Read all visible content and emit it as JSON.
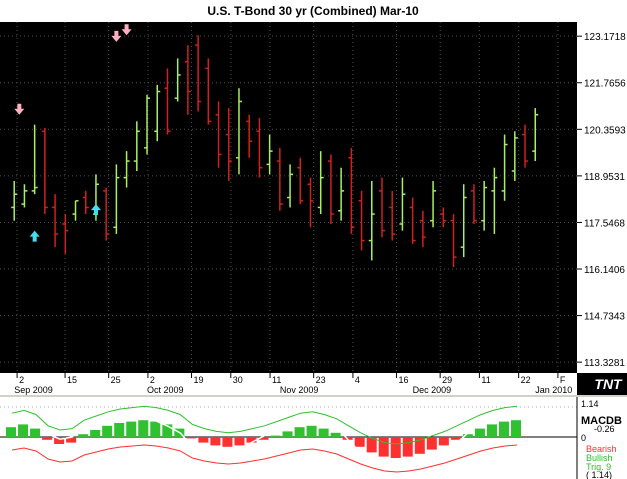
{
  "chart_data": [
    {
      "type": "bar",
      "title": "U.S. T-Bond 30 yr (Combined) Mar-10",
      "y_ticks": [
        "123.1718",
        "121.7656",
        "120.3593",
        "118.9531",
        "117.5468",
        "116.1406",
        "114.7343",
        "113.3281"
      ],
      "ylim": [
        113.0,
        123.6
      ],
      "x_day_ticks": [
        "2",
        "15",
        "25",
        "2",
        "19",
        "30",
        "11",
        "23",
        "4",
        "16",
        "29",
        "11",
        "22",
        "F"
      ],
      "x_month_labels": [
        "Sep 2009",
        "Oct 2009",
        "Nov 2009",
        "Dec 2009",
        "Jan 2010"
      ],
      "grid": true,
      "bars": {
        "x": [
          2,
          4,
          6,
          8,
          10,
          12,
          14,
          16,
          18,
          20,
          22,
          24,
          26,
          28,
          30,
          32,
          34,
          36,
          38,
          40,
          42,
          44,
          46,
          48,
          50,
          52,
          54,
          56,
          58,
          60,
          62,
          64,
          66,
          68,
          70,
          72,
          74,
          76,
          78,
          80,
          82,
          84,
          86,
          88,
          90,
          92,
          94,
          96,
          98,
          100,
          102,
          104
        ],
        "high": [
          118.8,
          118.7,
          120.5,
          120.4,
          118.4,
          117.8,
          118.2,
          118.5,
          119.0,
          118.6,
          119.3,
          119.7,
          120.6,
          121.4,
          121.7,
          122.2,
          122.5,
          122.9,
          123.2,
          122.5,
          121.2,
          121.0,
          121.6,
          120.8,
          120.7,
          120.2,
          119.8,
          119.3,
          119.5,
          118.9,
          119.7,
          119.6,
          119.2,
          119.8,
          118.5,
          118.8,
          118.9,
          118.5,
          118.9,
          118.3,
          117.9,
          118.8,
          118.0,
          117.8,
          118.7,
          118.7,
          118.8,
          119.2,
          120.2,
          120.3,
          120.5,
          121.0
        ],
        "low": [
          117.6,
          118.0,
          118.4,
          117.8,
          116.8,
          116.6,
          117.6,
          117.8,
          117.6,
          117.0,
          117.2,
          118.6,
          119.1,
          119.6,
          120.0,
          120.2,
          121.2,
          120.8,
          120.9,
          120.5,
          119.2,
          118.8,
          119.0,
          119.5,
          118.9,
          119.0,
          117.9,
          118.0,
          118.1,
          117.4,
          117.8,
          117.5,
          117.6,
          117.2,
          116.7,
          116.4,
          117.1,
          117.0,
          117.3,
          116.9,
          116.8,
          117.4,
          117.4,
          116.2,
          116.5,
          117.5,
          117.3,
          117.2,
          118.2,
          118.8,
          119.2,
          119.4
        ],
        "close": [
          118.4,
          118.5,
          118.6,
          118.0,
          117.2,
          117.3,
          118.2,
          118.0,
          118.7,
          117.2,
          118.9,
          119.4,
          120.3,
          121.3,
          121.5,
          120.3,
          122.0,
          121.5,
          121.2,
          120.6,
          119.6,
          119.4,
          121.2,
          120.0,
          119.2,
          119.7,
          118.1,
          119.0,
          118.2,
          118.2,
          118.9,
          117.8,
          118.5,
          117.4,
          117.0,
          117.8,
          117.3,
          117.2,
          118.4,
          117.0,
          117.1,
          118.5,
          117.6,
          116.5,
          118.3,
          117.6,
          118.6,
          118.9,
          119.9,
          120.1,
          119.4,
          120.8
        ],
        "open": [
          118.0,
          118.1,
          118.5,
          120.3,
          118.0,
          117.5,
          117.8,
          118.3,
          117.8,
          118.5,
          117.4,
          118.9,
          119.4,
          119.8,
          120.3,
          121.6,
          121.3,
          122.4,
          122.9,
          122.2,
          120.8,
          120.2,
          119.5,
          120.6,
          120.3,
          119.3,
          119.4,
          118.3,
          119.2,
          118.7,
          118.0,
          119.4,
          117.9,
          119.5,
          118.2,
          117.0,
          118.5,
          118.0,
          117.5,
          118.0,
          117.6,
          117.6,
          117.8,
          117.6,
          116.8,
          118.5,
          117.6,
          118.5,
          118.5,
          119.1,
          120.2,
          119.7
        ]
      },
      "down_arrows": [
        {
          "x": 3,
          "y": 120.8
        },
        {
          "x": 22,
          "y": 123.0
        },
        {
          "x": 24,
          "y": 123.2
        }
      ],
      "up_arrows": [
        {
          "x": 6,
          "y": 117.3
        },
        {
          "x": 18,
          "y": 118.1
        }
      ]
    },
    {
      "type": "bar",
      "title": "MACDB",
      "y_ticks": [
        "1.14",
        "0"
      ],
      "series_labels": [
        "Bearish",
        "Bullish",
        "Trig. 9"
      ],
      "readout": [
        "1.14",
        "-0.26",
        "( 1.14)"
      ],
      "colors": {
        "bearish": "#ff3030",
        "bullish": "#30c030",
        "trig": "#30c030"
      },
      "histogram": {
        "values": [
          0.35,
          0.45,
          0.3,
          -0.1,
          -0.25,
          -0.2,
          0.1,
          0.25,
          0.4,
          0.5,
          0.55,
          0.6,
          0.55,
          0.45,
          0.3,
          -0.05,
          -0.2,
          -0.3,
          -0.35,
          -0.3,
          -0.2,
          -0.1,
          0.05,
          0.2,
          0.35,
          0.4,
          0.3,
          0.15,
          -0.1,
          -0.35,
          -0.55,
          -0.7,
          -0.75,
          -0.7,
          -0.6,
          -0.45,
          -0.3,
          -0.1,
          0.1,
          0.3,
          0.45,
          0.55,
          0.6
        ]
      }
    }
  ],
  "branding": {
    "logo_text": "TNT"
  }
}
